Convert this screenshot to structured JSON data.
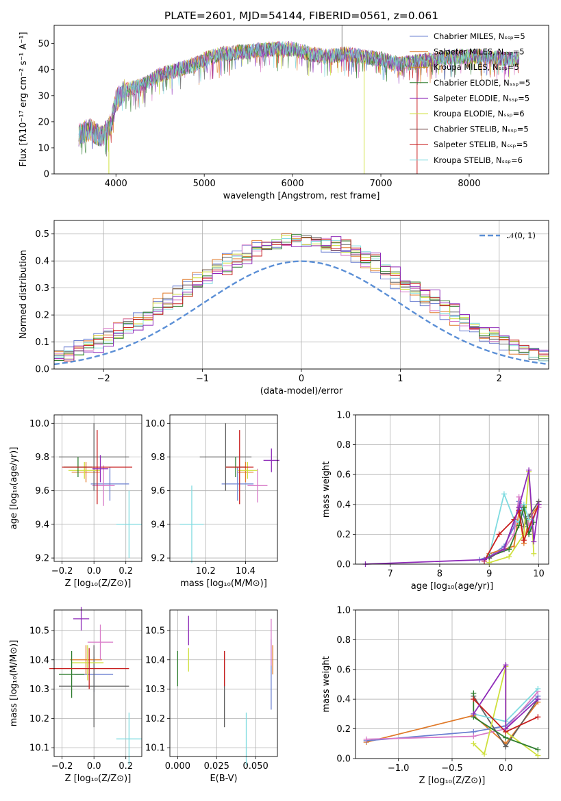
{
  "title": "PLATE=2601, MJD=54144, FIBERID=0561, z=0.061",
  "colors": [
    "#6a7fd1",
    "#e07a2a",
    "#d87bc8",
    "#5f5f5f",
    "#cfe03d",
    "#7fdbe0",
    "#2f7d2f",
    "#c81e1e",
    "#8e2ab8"
  ],
  "spectrum": {
    "type": "line",
    "xlabel": "wavelength [Angstrom, rest frame]",
    "ylabel": "Flux [fλ10⁻¹⁷ erg cm⁻² s⁻¹ A⁻¹]",
    "xlim": [
      3300,
      8900
    ],
    "ylim": [
      0,
      57
    ],
    "xticks": [
      "4000",
      "5000",
      "6000",
      "7000",
      "8000"
    ],
    "yticks": [
      "0",
      "10",
      "20",
      "30",
      "40",
      "50"
    ],
    "legend": [
      "Chabrier MILES, Nₛₛₚ=5",
      "Salpeter MILES, Nₛₛₚ=5",
      "Kroupa MILES, Nₛₛₚ=5",
      "Chabrier ELODIE, Nₛₛₚ=5",
      "Salpeter ELODIE, Nₛₛₚ=5",
      "Kroupa ELODIE, Nₛₛₚ=6",
      "Chabrier STELIB, Nₛₛₚ=5",
      "Salpeter STELIB, Nₛₛₚ=5",
      "Kroupa STELIB, Nₛₛₚ=6"
    ],
    "legend_colors": [
      "#6a7fd1",
      "#e07a2a",
      "#c8901f",
      "#2f7d2f",
      "#8e2ab8",
      "#cfe03d",
      "#5f2f2f",
      "#c81e1e",
      "#7fdbe0"
    ],
    "continuum": [
      [
        3580,
        15
      ],
      [
        3700,
        17
      ],
      [
        3850,
        14
      ],
      [
        3950,
        20
      ],
      [
        4000,
        28
      ],
      [
        4100,
        32
      ],
      [
        4300,
        34
      ],
      [
        4500,
        38
      ],
      [
        4700,
        40
      ],
      [
        4900,
        42
      ],
      [
        5000,
        44
      ],
      [
        5200,
        46
      ],
      [
        5500,
        47
      ],
      [
        5800,
        48
      ],
      [
        6000,
        48
      ],
      [
        6200,
        46
      ],
      [
        6400,
        45
      ],
      [
        6600,
        46
      ],
      [
        6800,
        45
      ],
      [
        7000,
        44
      ],
      [
        7200,
        42
      ],
      [
        7400,
        43
      ],
      [
        7600,
        44
      ],
      [
        7800,
        45
      ],
      [
        8000,
        45
      ],
      [
        8200,
        45
      ],
      [
        8400,
        44
      ],
      [
        8570,
        44
      ]
    ]
  },
  "histogram": {
    "type": "bar",
    "xlabel": "(data-model)/error",
    "ylabel": "Normed distribution",
    "xlim": [
      -2.5,
      2.5
    ],
    "ylim": [
      0,
      0.55
    ],
    "xticks": [
      "−2",
      "−1",
      "0",
      "1",
      "2"
    ],
    "yticks": [
      "0.0",
      "0.1",
      "0.2",
      "0.3",
      "0.4",
      "0.5"
    ],
    "legend": "𝒩(0, 1)",
    "bin_width": 0.1,
    "approx_peak": 0.5
  },
  "panels": {
    "age_vs_Z": {
      "xlabel": "Z [log₁₀(Z/Z⊙)]",
      "ylabel": "age  [log₁₀(age/yr)]",
      "xlim": [
        -0.25,
        0.3
      ],
      "ylim": [
        9.18,
        10.05
      ],
      "xticks": [
        "−0.2",
        "0.0",
        "0.2"
      ],
      "yticks": [
        "9.2",
        "9.4",
        "9.6",
        "9.8",
        "10.0"
      ],
      "points": [
        {
          "x": 0.1,
          "xerr": 0.12,
          "y": 9.64,
          "yerr": 0.1,
          "c": 0
        },
        {
          "x": -0.05,
          "xerr": 0.09,
          "y": 9.71,
          "yerr": 0.06,
          "c": 1
        },
        {
          "x": 0.06,
          "xerr": 0.07,
          "y": 9.63,
          "yerr": 0.12,
          "c": 2
        },
        {
          "x": 0.0,
          "xerr": 0.22,
          "y": 9.8,
          "yerr": 0.2,
          "c": 3
        },
        {
          "x": -0.06,
          "xerr": 0.1,
          "y": 9.72,
          "yerr": 0.05,
          "c": 4
        },
        {
          "x": 0.22,
          "xerr": 0.08,
          "y": 9.4,
          "yerr": 0.2,
          "c": 5
        },
        {
          "x": -0.1,
          "xerr": 0.09,
          "y": 9.74,
          "yerr": 0.06,
          "c": 6
        },
        {
          "x": 0.02,
          "xerr": 0.22,
          "y": 9.74,
          "yerr": 0.22,
          "c": 7
        },
        {
          "x": 0.04,
          "xerr": 0.05,
          "y": 9.73,
          "yerr": 0.08,
          "c": 8
        }
      ]
    },
    "age_vs_mass": {
      "xlabel": "mass [log₁₀(M/M⊙)]",
      "xlim": [
        10.02,
        10.56
      ],
      "ylim": [
        9.18,
        10.05
      ],
      "xticks": [
        "10.2",
        "10.4"
      ],
      "yticks": [
        "9.2",
        "9.4",
        "9.6",
        "9.8",
        "10.0"
      ],
      "points": [
        {
          "x": 10.36,
          "xerr": 0.08,
          "y": 9.64,
          "yerr": 0.1,
          "c": 0
        },
        {
          "x": 10.4,
          "xerr": 0.04,
          "y": 9.71,
          "yerr": 0.06,
          "c": 1
        },
        {
          "x": 10.46,
          "xerr": 0.05,
          "y": 9.63,
          "yerr": 0.1,
          "c": 2
        },
        {
          "x": 10.3,
          "xerr": 0.13,
          "y": 9.8,
          "yerr": 0.2,
          "c": 3
        },
        {
          "x": 10.41,
          "xerr": 0.05,
          "y": 9.72,
          "yerr": 0.05,
          "c": 4
        },
        {
          "x": 10.13,
          "xerr": 0.06,
          "y": 9.4,
          "yerr": 0.23,
          "c": 5
        },
        {
          "x": 10.35,
          "xerr": 0.05,
          "y": 9.74,
          "yerr": 0.06,
          "c": 6
        },
        {
          "x": 10.37,
          "xerr": 0.07,
          "y": 9.74,
          "yerr": 0.22,
          "c": 7
        },
        {
          "x": 10.53,
          "xerr": 0.04,
          "y": 9.78,
          "yerr": 0.07,
          "c": 8
        }
      ]
    },
    "mass_vs_Z": {
      "xlabel": "Z [log₁₀(Z/Z⊙)]",
      "ylabel": "mass [log₁₀(M/M⊙)]",
      "xlim": [
        -0.25,
        0.3
      ],
      "ylim": [
        10.07,
        10.57
      ],
      "xticks": [
        "−0.2",
        "0.0",
        "0.2"
      ],
      "yticks": [
        "10.1",
        "10.2",
        "10.3",
        "10.4",
        "10.5"
      ],
      "points": [
        {
          "x": 0.0,
          "xerr": 0.12,
          "y": 10.35,
          "yerr": 0.06,
          "c": 0
        },
        {
          "x": -0.05,
          "xerr": 0.1,
          "y": 10.4,
          "yerr": 0.05,
          "c": 1
        },
        {
          "x": 0.04,
          "xerr": 0.08,
          "y": 10.46,
          "yerr": 0.06,
          "c": 2
        },
        {
          "x": 0.0,
          "xerr": 0.22,
          "y": 10.31,
          "yerr": 0.14,
          "c": 3
        },
        {
          "x": -0.04,
          "xerr": 0.1,
          "y": 10.39,
          "yerr": 0.06,
          "c": 4
        },
        {
          "x": 0.22,
          "xerr": 0.08,
          "y": 10.13,
          "yerr": 0.09,
          "c": 5
        },
        {
          "x": -0.14,
          "xerr": 0.08,
          "y": 10.35,
          "yerr": 0.08,
          "c": 6
        },
        {
          "x": -0.03,
          "xerr": 0.25,
          "y": 10.37,
          "yerr": 0.07,
          "c": 7
        },
        {
          "x": -0.08,
          "xerr": 0.05,
          "y": 10.54,
          "yerr": 0.04,
          "c": 8
        }
      ]
    },
    "mass_vs_EBV": {
      "xlabel": "E(B-V)",
      "xlim": [
        -0.005,
        0.064
      ],
      "ylim": [
        10.07,
        10.57
      ],
      "xticks": [
        "0.000",
        "0.025",
        "0.050"
      ],
      "yticks": [
        "10.1",
        "10.2",
        "10.3",
        "10.4",
        "10.5"
      ],
      "points": [
        {
          "x": 0.06,
          "xerr": 0,
          "y": 10.35,
          "yerr": 0.12,
          "c": 0
        },
        {
          "x": 0.061,
          "xerr": 0,
          "y": 10.4,
          "yerr": 0.05,
          "c": 1
        },
        {
          "x": 0.06,
          "xerr": 0,
          "y": 10.46,
          "yerr": 0.08,
          "c": 2
        },
        {
          "x": 0.03,
          "xerr": 0,
          "y": 10.3,
          "yerr": 0.13,
          "c": 3
        },
        {
          "x": 0.007,
          "xerr": 0,
          "y": 10.4,
          "yerr": 0.04,
          "c": 4
        },
        {
          "x": 0.044,
          "xerr": 0,
          "y": 10.13,
          "yerr": 0.09,
          "c": 5
        },
        {
          "x": 0.0,
          "xerr": 0,
          "y": 10.37,
          "yerr": 0.06,
          "c": 6
        },
        {
          "x": 0.03,
          "xerr": 0,
          "y": 10.37,
          "yerr": 0.06,
          "c": 7
        },
        {
          "x": 0.007,
          "xerr": 0,
          "y": 10.5,
          "yerr": 0.05,
          "c": 8
        }
      ]
    },
    "weight_vs_age": {
      "xlabel": "age  [log₁₀(age/yr)]",
      "ylabel": "mass weight",
      "xlim": [
        6.3,
        10.2
      ],
      "ylim": [
        0,
        1
      ],
      "xticks": [
        "7",
        "8",
        "9",
        "10"
      ],
      "yticks": [
        "0.0",
        "0.2",
        "0.4",
        "0.6",
        "0.8",
        "1.0"
      ],
      "series": [
        {
          "c": 0,
          "pts": [
            [
              8.8,
              0.03
            ],
            [
              9.0,
              0.05
            ],
            [
              9.3,
              0.12
            ],
            [
              9.5,
              0.25
            ],
            [
              9.6,
              0.42
            ],
            [
              9.8,
              0.22
            ],
            [
              10.0,
              0.4
            ]
          ]
        },
        {
          "c": 1,
          "pts": [
            [
              9.0,
              0.07
            ],
            [
              9.5,
              0.12
            ],
            [
              9.6,
              0.35
            ],
            [
              9.7,
              0.14
            ],
            [
              9.8,
              0.3
            ],
            [
              10.0,
              0.4
            ]
          ]
        },
        {
          "c": 2,
          "pts": [
            [
              9.0,
              0.05
            ],
            [
              9.3,
              0.1
            ],
            [
              9.5,
              0.2
            ],
            [
              9.6,
              0.45
            ],
            [
              9.8,
              0.26
            ],
            [
              10.0,
              0.38
            ]
          ]
        },
        {
          "c": 3,
          "pts": [
            [
              9.0,
              0.04
            ],
            [
              9.3,
              0.1
            ],
            [
              9.6,
              0.38
            ],
            [
              9.7,
              0.25
            ],
            [
              9.8,
              0.32
            ],
            [
              10.0,
              0.42
            ]
          ]
        },
        {
          "c": 4,
          "pts": [
            [
              9.0,
              0.01
            ],
            [
              9.4,
              0.05
            ],
            [
              9.7,
              0.2
            ],
            [
              9.8,
              0.62
            ],
            [
              9.9,
              0.07
            ]
          ]
        },
        {
          "c": 5,
          "pts": [
            [
              9.0,
              0.06
            ],
            [
              9.3,
              0.47
            ],
            [
              9.5,
              0.3
            ],
            [
              9.6,
              0.28
            ],
            [
              9.7,
              0.4
            ],
            [
              9.8,
              0.3
            ]
          ]
        },
        {
          "c": 6,
          "pts": [
            [
              9.0,
              0.05
            ],
            [
              9.4,
              0.1
            ],
            [
              9.6,
              0.26
            ],
            [
              9.7,
              0.38
            ],
            [
              9.8,
              0.2
            ],
            [
              9.9,
              0.28
            ]
          ]
        },
        {
          "c": 7,
          "pts": [
            [
              8.9,
              0.02
            ],
            [
              9.2,
              0.2
            ],
            [
              9.5,
              0.3
            ],
            [
              9.6,
              0.36
            ],
            [
              9.7,
              0.16
            ],
            [
              10.0,
              0.4
            ]
          ]
        },
        {
          "c": 8,
          "pts": [
            [
              6.5,
              0.0
            ],
            [
              8.9,
              0.03
            ],
            [
              9.3,
              0.1
            ],
            [
              9.6,
              0.38
            ],
            [
              9.8,
              0.63
            ],
            [
              9.9,
              0.15
            ],
            [
              10.0,
              0.4
            ]
          ]
        }
      ]
    },
    "weight_vs_Z": {
      "xlabel": "Z [log₁₀(Z/Z⊙)]",
      "ylabel": "mass weight",
      "xlim": [
        -1.4,
        0.4
      ],
      "ylim": [
        0,
        1
      ],
      "xticks": [
        "−1.0",
        "−0.5",
        "0.0"
      ],
      "yticks": [
        "0.0",
        "0.2",
        "0.4",
        "0.6",
        "0.8",
        "1.0"
      ],
      "series": [
        {
          "c": 1,
          "pts": [
            [
              -1.3,
              0.11
            ],
            [
              -0.3,
              0.29
            ],
            [
              0.0,
              0.1
            ],
            [
              0.3,
              0.38
            ]
          ]
        },
        {
          "c": 0,
          "pts": [
            [
              -1.3,
              0.12
            ],
            [
              -0.3,
              0.18
            ],
            [
              0.0,
              0.22
            ],
            [
              0.3,
              0.42
            ]
          ]
        },
        {
          "c": 2,
          "pts": [
            [
              -1.3,
              0.13
            ],
            [
              -0.3,
              0.15
            ],
            [
              0.0,
              0.2
            ],
            [
              0.3,
              0.45
            ]
          ]
        },
        {
          "c": 3,
          "pts": [
            [
              -0.3,
              0.42
            ],
            [
              0.0,
              0.08
            ],
            [
              0.3,
              0.4
            ]
          ]
        },
        {
          "c": 4,
          "pts": [
            [
              -0.3,
              0.1
            ],
            [
              -0.2,
              0.03
            ],
            [
              0.0,
              0.62
            ],
            [
              0.0,
              0.18
            ],
            [
              0.3,
              0.02
            ]
          ]
        },
        {
          "c": 5,
          "pts": [
            [
              -0.3,
              0.3
            ],
            [
              0.0,
              0.25
            ],
            [
              0.3,
              0.47
            ]
          ]
        },
        {
          "c": 6,
          "pts": [
            [
              -0.3,
              0.44
            ],
            [
              -0.3,
              0.28
            ],
            [
              0.0,
              0.14
            ],
            [
              0.3,
              0.06
            ]
          ]
        },
        {
          "c": 7,
          "pts": [
            [
              -0.3,
              0.4
            ],
            [
              0.0,
              0.18
            ],
            [
              0.3,
              0.28
            ]
          ]
        },
        {
          "c": 8,
          "pts": [
            [
              -0.3,
              0.3
            ],
            [
              0.0,
              0.63
            ],
            [
              0.0,
              0.2
            ],
            [
              0.3,
              0.4
            ]
          ]
        }
      ]
    }
  },
  "chart_data": [
    {
      "type": "line",
      "title": "PLATE=2601, MJD=54144, FIBERID=0561, z=0.061",
      "xlabel": "wavelength [Angstrom, rest frame]",
      "ylabel": "Flux",
      "ylim": [
        0,
        57
      ]
    },
    {
      "type": "bar",
      "xlabel": "(data-model)/error",
      "ylabel": "Normed distribution",
      "ylim": [
        0,
        0.55
      ]
    },
    {
      "type": "scatter",
      "xlabel": "Z",
      "ylabel": "age"
    },
    {
      "type": "scatter",
      "xlabel": "mass",
      "ylabel": "age"
    },
    {
      "type": "line",
      "xlabel": "age",
      "ylabel": "mass weight"
    },
    {
      "type": "scatter",
      "xlabel": "Z",
      "ylabel": "mass"
    },
    {
      "type": "scatter",
      "xlabel": "E(B-V)",
      "ylabel": "mass"
    },
    {
      "type": "line",
      "xlabel": "Z",
      "ylabel": "mass weight"
    }
  ]
}
